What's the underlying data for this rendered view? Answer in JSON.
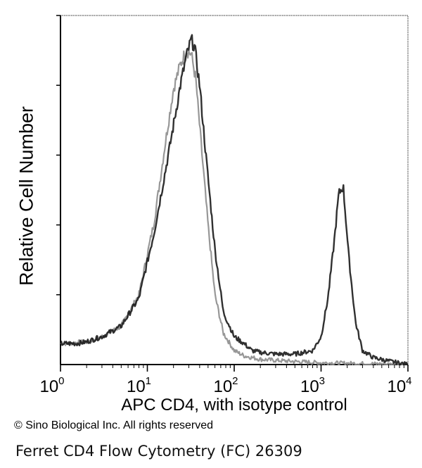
{
  "chart_data": {
    "type": "area",
    "title": "",
    "xlabel": "APC CD4, with isotype control",
    "ylabel": "Relative Cell Number",
    "x_scale": "log",
    "xlim": [
      1,
      10000
    ],
    "ylim": [
      0,
      1
    ],
    "x_ticks": [
      {
        "value": 1,
        "base": "10",
        "exp": "0"
      },
      {
        "value": 10,
        "base": "10",
        "exp": "1"
      },
      {
        "value": 100,
        "base": "10",
        "exp": "2"
      },
      {
        "value": 1000,
        "base": "10",
        "exp": "3"
      },
      {
        "value": 10000,
        "base": "10",
        "exp": "4"
      }
    ],
    "y_tick_labels_shown": false,
    "grid": false,
    "legend": "none",
    "series": [
      {
        "role": "sample",
        "color": "#1a1a1a",
        "x": [
          1,
          1.5,
          2,
          3,
          5,
          8,
          12,
          18,
          24,
          28,
          32,
          35,
          40,
          48,
          60,
          75,
          100,
          130,
          160,
          200,
          300,
          500,
          800,
          1000,
          1200,
          1400,
          1600,
          1800,
          2100,
          2500,
          3000,
          4000,
          6000,
          10000
        ],
        "y": [
          0.06,
          0.06,
          0.065,
          0.08,
          0.11,
          0.19,
          0.38,
          0.62,
          0.8,
          0.88,
          0.93,
          0.91,
          0.8,
          0.58,
          0.33,
          0.15,
          0.08,
          0.06,
          0.04,
          0.035,
          0.03,
          0.03,
          0.04,
          0.08,
          0.19,
          0.34,
          0.49,
          0.51,
          0.3,
          0.12,
          0.04,
          0.02,
          0.01,
          0.0
        ]
      },
      {
        "role": "isotype control",
        "color": "#8c8c8c",
        "x": [
          1,
          2,
          3,
          5,
          8,
          12,
          16,
          20,
          24,
          28,
          32,
          36,
          42,
          50,
          60,
          75,
          100,
          130,
          200,
          400,
          1000,
          10000
        ],
        "y": [
          0.06,
          0.065,
          0.08,
          0.11,
          0.2,
          0.41,
          0.63,
          0.79,
          0.86,
          0.9,
          0.89,
          0.82,
          0.62,
          0.4,
          0.2,
          0.09,
          0.04,
          0.025,
          0.015,
          0.01,
          0.005,
          0.0
        ]
      }
    ]
  },
  "labels": {
    "copyright": "© Sino Biological Inc. All rights reserved",
    "caption": "Ferret CD4 Flow Cytometry (FC) 26309"
  }
}
